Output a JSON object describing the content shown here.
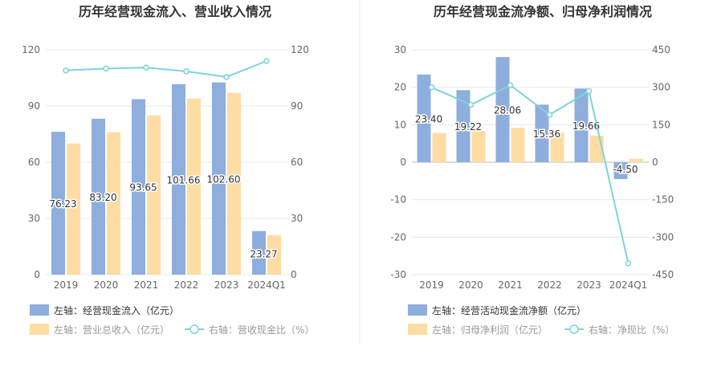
{
  "chart_data": [
    {
      "type": "bar+line",
      "title": "历年经营现金流入、营业收入情况",
      "categories": [
        "2019",
        "2020",
        "2021",
        "2022",
        "2023",
        "2024Q1"
      ],
      "left_axis": {
        "ylim": [
          0,
          120
        ],
        "ticks": [
          "0",
          "30",
          "60",
          "90",
          "120"
        ]
      },
      "right_axis": {
        "ylim": [
          0,
          120
        ],
        "ticks": [
          "0",
          "30",
          "60",
          "90",
          "120"
        ]
      },
      "series": [
        {
          "name": "左轴：经营现金流入（亿元）",
          "type": "bar",
          "axis": "left",
          "color": "#8eaedd",
          "values": [
            76.23,
            83.2,
            93.65,
            101.66,
            102.6,
            23.27
          ],
          "labels": [
            "76.23",
            "83.20",
            "93.65",
            "101.66",
            "102.60",
            "23.27"
          ]
        },
        {
          "name": "左轴：营业总收入（亿元）",
          "type": "bar",
          "axis": "left",
          "color": "#ffdca3",
          "values": [
            70,
            76,
            85,
            94,
            97,
            21
          ]
        },
        {
          "name": "右轴：营收现金比（%）",
          "type": "line",
          "axis": "right",
          "color": "#7fd3d8",
          "values": [
            109,
            110,
            110.5,
            108.5,
            105.5,
            114
          ]
        }
      ]
    },
    {
      "type": "bar+line",
      "title": "历年经营现金流净额、归母净利润情况",
      "categories": [
        "2019",
        "2020",
        "2021",
        "2022",
        "2023",
        "2024Q1"
      ],
      "left_axis": {
        "ylim": [
          -30,
          30
        ],
        "ticks": [
          "-30",
          "-20",
          "-10",
          "0",
          "10",
          "20",
          "30"
        ]
      },
      "right_axis": {
        "ylim": [
          -450,
          450
        ],
        "ticks": [
          "-450",
          "-300",
          "-150",
          "0",
          "150",
          "300",
          "450"
        ]
      },
      "series": [
        {
          "name": "左轴：经营活动现金流净额（亿元）",
          "type": "bar",
          "axis": "left",
          "color": "#8eaedd",
          "values": [
            23.4,
            19.22,
            28.06,
            15.36,
            19.66,
            -4.5
          ],
          "labels": [
            "23.40",
            "19.22",
            "28.06",
            "15.36",
            "19.66",
            "-4.50"
          ]
        },
        {
          "name": "左轴：归母净利润（亿元）",
          "type": "bar",
          "axis": "left",
          "color": "#ffdca3",
          "values": [
            7.8,
            8.3,
            9.2,
            8.0,
            7.1,
            0.9
          ]
        },
        {
          "name": "右轴：净现比（%）",
          "type": "line",
          "axis": "right",
          "color": "#7fd3d8",
          "values": [
            300,
            230,
            308,
            190,
            285,
            -405
          ]
        }
      ]
    }
  ]
}
